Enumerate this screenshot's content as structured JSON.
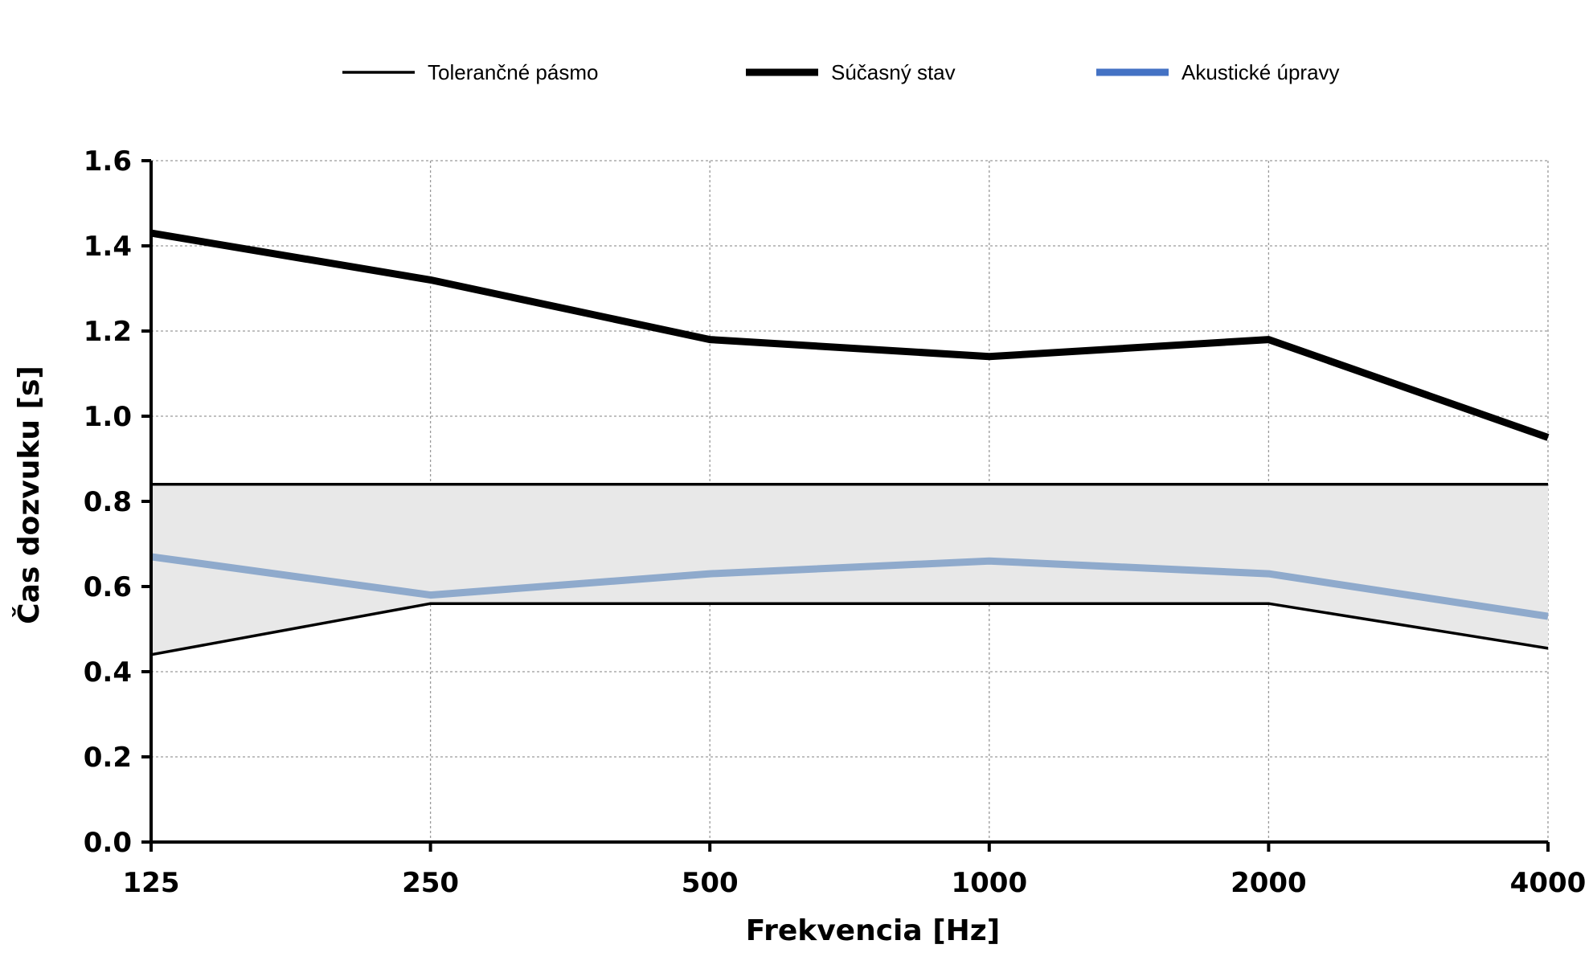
{
  "chart_data": {
    "type": "line",
    "categories": [
      "125",
      "250",
      "500",
      "1000",
      "2000",
      "4000"
    ],
    "xlabel": "Frekvencia [Hz]",
    "ylabel": "Čas dozvuku [s]",
    "ylim": [
      0,
      1.6
    ],
    "yticks": [
      "0.0",
      "0.2",
      "0.4",
      "0.6",
      "0.8",
      "1.0",
      "1.2",
      "1.4",
      "1.6"
    ],
    "grid": true,
    "legend_position": "top",
    "tolerance_band": {
      "name": "Tolerančné pásmo",
      "upper": [
        0.84,
        0.84,
        0.84,
        0.84,
        0.84,
        0.84
      ],
      "lower": [
        0.44,
        0.56,
        0.56,
        0.56,
        0.56,
        0.455
      ],
      "color": "#000000",
      "fill": "#e8e8e8"
    },
    "series": [
      {
        "name": "Súčasný stav",
        "values": [
          1.43,
          1.32,
          1.18,
          1.14,
          1.18,
          0.95
        ],
        "color": "#000000"
      },
      {
        "name": "Akustické úpravy",
        "values": [
          0.67,
          0.58,
          0.63,
          0.66,
          0.63,
          0.53
        ],
        "color": "#8faacc",
        "legend_color": "#4472c4"
      }
    ]
  }
}
